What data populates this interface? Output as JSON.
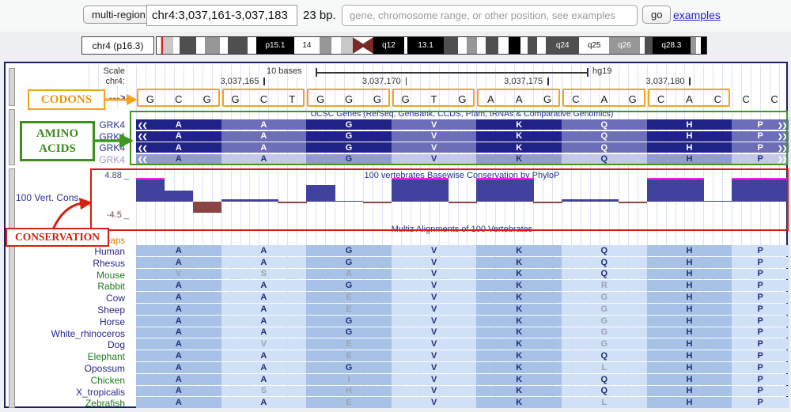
{
  "toolbar": {
    "multi_region_label": "multi-region",
    "position_value": "chr4:3,037,161-3,037,183",
    "size_label": "23 bp.",
    "search_placeholder": "gene, chromosome range, or other position, see examples",
    "go_label": "go",
    "examples_label": "examples"
  },
  "ideogram": {
    "label": "chr4 (p16.3)",
    "bands": [
      {
        "f": 0.01,
        "s": "w"
      },
      {
        "f": 0.03,
        "s": "l"
      },
      {
        "f": 0.014,
        "s": "w"
      },
      {
        "f": 0.04,
        "s": "d"
      },
      {
        "f": 0.022,
        "s": "w"
      },
      {
        "f": 0.036,
        "s": "m"
      },
      {
        "f": 0.018,
        "s": "w"
      },
      {
        "f": 0.048,
        "s": "d"
      },
      {
        "f": 0.02,
        "s": "w"
      },
      {
        "f": 0.045,
        "s": "k",
        "label": "p15.1",
        "lc": "w"
      },
      {
        "f": 0.038,
        "s": "w",
        "label": "14",
        "lc": "k"
      },
      {
        "f": 0.03,
        "s": "m"
      },
      {
        "f": 0.022,
        "s": "w"
      },
      {
        "f": 0.028,
        "s": "l"
      },
      {
        "f": 0.05,
        "s": "cen"
      },
      {
        "f": 0.042,
        "s": "k",
        "label": "q12",
        "lc": "w"
      },
      {
        "f": 0.008,
        "s": "w"
      },
      {
        "f": 0.05,
        "s": "k",
        "label": "13.1",
        "lc": "w"
      },
      {
        "f": 0.035,
        "s": "d"
      },
      {
        "f": 0.02,
        "s": "w"
      },
      {
        "f": 0.025,
        "s": "m"
      },
      {
        "f": 0.02,
        "s": "w"
      },
      {
        "f": 0.03,
        "s": "d"
      },
      {
        "f": 0.025,
        "s": "w"
      },
      {
        "f": 0.028,
        "s": "k"
      },
      {
        "f": 0.018,
        "s": "w"
      },
      {
        "f": 0.022,
        "s": "d"
      },
      {
        "f": 0.022,
        "s": "w"
      },
      {
        "f": 0.048,
        "s": "d",
        "label": "q24",
        "lc": "w"
      },
      {
        "f": 0.04,
        "s": "w",
        "label": "q25",
        "lc": "k"
      },
      {
        "f": 0.042,
        "s": "m",
        "label": "q26",
        "lc": "w"
      },
      {
        "f": 0.012,
        "s": "w"
      },
      {
        "f": 0.018,
        "s": "d"
      },
      {
        "f": 0.044,
        "s": "k",
        "label": "q28.3",
        "lc": "w"
      },
      {
        "f": 0.014,
        "s": "m"
      },
      {
        "f": 0.01,
        "s": "w"
      },
      {
        "f": 0.014,
        "s": "k"
      }
    ]
  },
  "ruler": {
    "scale_label": "Scale",
    "scale_text": "10 bases",
    "assembly": "hg19",
    "chrom_label": "chr4:",
    "strand_arrow": "--->",
    "ticks": [
      {
        "label": "3,037,165",
        "base": 5
      },
      {
        "label": "3,037,170",
        "base": 10
      },
      {
        "label": "3,037,175",
        "base": 15
      },
      {
        "label": "3,037,180",
        "base": 20
      }
    ]
  },
  "sequence": {
    "bases": [
      "G",
      "C",
      "G",
      "G",
      "C",
      "T",
      "G",
      "G",
      "G",
      "G",
      "T",
      "G",
      "A",
      "A",
      "G",
      "C",
      "A",
      "G",
      "C",
      "A",
      "C",
      "C",
      "C"
    ],
    "codon_starts": [
      0,
      3,
      6,
      9,
      12,
      15,
      18
    ]
  },
  "genes_track": {
    "title": "UCSC Genes (RefSeq, GenBank, CCDS, Pfam, tRNAs & Comparative Genomics)",
    "rows": [
      {
        "label": "GRK4",
        "style": "dark",
        "aa": [
          "A",
          "A",
          "G",
          "V",
          "K",
          "Q",
          "H",
          "P"
        ]
      },
      {
        "label": "GRK4",
        "style": "dark",
        "aa": [
          "A",
          "A",
          "G",
          "V",
          "K",
          "Q",
          "H",
          "P"
        ]
      },
      {
        "label": "GRK4",
        "style": "dark",
        "aa": [
          "A",
          "A",
          "G",
          "V",
          "K",
          "Q",
          "H",
          "P"
        ]
      },
      {
        "label": "GRK4",
        "style": "light",
        "aa": [
          "A",
          "A",
          "G",
          "V",
          "K",
          "Q",
          "H",
          "P"
        ]
      }
    ],
    "left_arrows": "❮❮",
    "right_arrows": "❯❯"
  },
  "conservation_track": {
    "side_label": "100 Vert. Cons",
    "title": "100 vertebrates Basewise Conservation by PhyloP",
    "max_label": "4.88 _",
    "min_label": "-4.5 _",
    "axis_max": 4.88,
    "axis_min": -4.5,
    "values": [
      4.88,
      2.4,
      -2.5,
      0.55,
      0.55,
      -0.3,
      3.6,
      0.12,
      -0.3,
      4.88,
      4.88,
      -0.3,
      4.88,
      4.88,
      -0.3,
      0.45,
      0.45,
      -0.3,
      4.88,
      4.88,
      0.12,
      4.88,
      4.88
    ]
  },
  "multiz_track": {
    "title": "Multiz Alignments of 100 Vertebrates",
    "gaps_label": "Gaps",
    "species": [
      {
        "name": "Human",
        "c": "navy",
        "aa": [
          "A",
          "A",
          "G",
          "V",
          "K",
          "Q",
          "H",
          "P"
        ],
        "dim": [
          0,
          0,
          0,
          0,
          0,
          0,
          0,
          0
        ]
      },
      {
        "name": "Rhesus",
        "c": "navy",
        "aa": [
          "A",
          "A",
          "G",
          "V",
          "K",
          "Q",
          "H",
          "P"
        ],
        "dim": [
          0,
          0,
          0,
          0,
          0,
          0,
          0,
          0
        ]
      },
      {
        "name": "Mouse",
        "c": "green",
        "aa": [
          "V",
          "S",
          "A",
          "V",
          "K",
          "Q",
          "H",
          "P"
        ],
        "dim": [
          1,
          1,
          1,
          0,
          0,
          0,
          0,
          0
        ]
      },
      {
        "name": "Rabbit",
        "c": "green",
        "aa": [
          "A",
          "A",
          "G",
          "V",
          "K",
          "R",
          "H",
          "P"
        ],
        "dim": [
          0,
          0,
          0,
          0,
          0,
          1,
          0,
          0
        ]
      },
      {
        "name": "Cow",
        "c": "navy",
        "aa": [
          "A",
          "A",
          "E",
          "V",
          "K",
          "G",
          "H",
          "P"
        ],
        "dim": [
          0,
          0,
          1,
          0,
          0,
          1,
          0,
          0
        ]
      },
      {
        "name": "Sheep",
        "c": "navy",
        "aa": [
          "A",
          "A",
          "E",
          "V",
          "K",
          "G",
          "H",
          "P"
        ],
        "dim": [
          0,
          0,
          1,
          0,
          0,
          1,
          0,
          0
        ]
      },
      {
        "name": "Horse",
        "c": "navy",
        "aa": [
          "A",
          "A",
          "G",
          "V",
          "K",
          "G",
          "H",
          "P"
        ],
        "dim": [
          0,
          0,
          0,
          0,
          0,
          1,
          0,
          0
        ]
      },
      {
        "name": "White_rhinoceros",
        "c": "navy",
        "aa": [
          "A",
          "A",
          "G",
          "V",
          "K",
          "G",
          "H",
          "P"
        ],
        "dim": [
          0,
          0,
          0,
          0,
          0,
          1,
          0,
          0
        ]
      },
      {
        "name": "Dog",
        "c": "navy",
        "aa": [
          "A",
          "V",
          "E",
          "V",
          "K",
          "G",
          "H",
          "P"
        ],
        "dim": [
          0,
          1,
          1,
          0,
          0,
          1,
          0,
          0
        ]
      },
      {
        "name": "Elephant",
        "c": "green",
        "aa": [
          "A",
          "A",
          "E",
          "V",
          "K",
          "Q",
          "H",
          "P"
        ],
        "dim": [
          0,
          0,
          1,
          0,
          0,
          0,
          0,
          0
        ]
      },
      {
        "name": "Opossum",
        "c": "navy",
        "aa": [
          "A",
          "A",
          "G",
          "V",
          "K",
          "L",
          "H",
          "P"
        ],
        "dim": [
          0,
          0,
          0,
          0,
          0,
          1,
          0,
          0
        ]
      },
      {
        "name": "Chicken",
        "c": "green",
        "aa": [
          "A",
          "A",
          "I",
          "V",
          "K",
          "Q",
          "H",
          "P"
        ],
        "dim": [
          0,
          0,
          1,
          0,
          0,
          0,
          0,
          0
        ]
      },
      {
        "name": "X_tropicalis",
        "c": "navy",
        "aa": [
          "A",
          "S",
          "H",
          "V",
          "K",
          "Q",
          "H",
          "P"
        ],
        "dim": [
          0,
          1,
          1,
          0,
          0,
          0,
          0,
          0
        ]
      },
      {
        "name": "Zebrafish",
        "c": "green",
        "aa": [
          "A",
          "A",
          "E",
          "V",
          "K",
          "L",
          "H",
          "P"
        ],
        "dim": [
          0,
          0,
          1,
          0,
          0,
          1,
          0,
          0
        ]
      }
    ]
  },
  "annotations": {
    "codons": "CODONS",
    "amino_acids_line1": "AMINO",
    "amino_acids_line2": "ACIDS",
    "conservation": "CONSERVATION"
  },
  "colors": {
    "accent_orange": "#f6a21c",
    "accent_green": "#3f9623",
    "accent_red": "#d62011",
    "navy_text": "#2a2f96",
    "green_label": "#1e7a1e",
    "gaps_orange": "#d97d00",
    "gene_cell_dark": "#202287",
    "gene_cell_mid": "#6c6eb8",
    "gene_cell_light1": "#9599d2",
    "gene_cell_light2": "#c6c8ea",
    "species_cell_mid": "#a8c1e6",
    "species_cell_light": "#d0e0f6",
    "aa_normal": "#1f2f7a",
    "aa_dim": "#9aa2b5",
    "cons_pos": "#41429d",
    "cons_neg": "#8b4343",
    "cons_clip": "#ff20f0"
  }
}
